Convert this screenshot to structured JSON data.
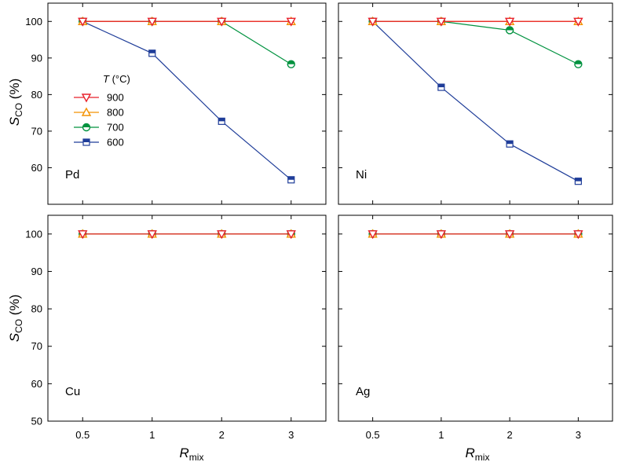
{
  "chart_data": {
    "type": "line",
    "x_categories": [
      "0.5",
      "1",
      "2",
      "3"
    ],
    "xlabel": {
      "main": "R",
      "sub": "mix"
    },
    "ylabel": {
      "main": "S",
      "sub": "CO",
      "unit": "(%)"
    },
    "ylim": [
      50,
      105
    ],
    "yticks": [
      50,
      60,
      70,
      80,
      90,
      100
    ],
    "legend": {
      "title_italic": "T",
      "title_unit": "(°C)",
      "entries": [
        {
          "label": "900",
          "color": "#e8212b",
          "marker": "triangle-down"
        },
        {
          "label": "800",
          "color": "#f39200",
          "marker": "triangle-up"
        },
        {
          "label": "700",
          "color": "#00923f",
          "marker": "circle"
        },
        {
          "label": "600",
          "color": "#1f3d99",
          "marker": "square"
        }
      ]
    },
    "panels": [
      {
        "label": "Pd",
        "series": [
          {
            "name": "900",
            "values": [
              100,
              100,
              100,
              100
            ]
          },
          {
            "name": "800",
            "values": [
              100,
              100,
              100,
              100
            ]
          },
          {
            "name": "700",
            "values": [
              100,
              100,
              100,
              88.3
            ]
          },
          {
            "name": "600",
            "values": [
              100,
              91.3,
              72.7,
              56.7
            ]
          }
        ]
      },
      {
        "label": "Ni",
        "series": [
          {
            "name": "900",
            "values": [
              100,
              100,
              100,
              100
            ]
          },
          {
            "name": "800",
            "values": [
              100,
              100,
              100,
              100
            ]
          },
          {
            "name": "700",
            "values": [
              100,
              100,
              97.6,
              88.3
            ]
          },
          {
            "name": "600",
            "values": [
              100,
              82,
              66.5,
              56.3
            ]
          }
        ]
      },
      {
        "label": "Cu",
        "series": [
          {
            "name": "900",
            "values": [
              100,
              100,
              100,
              100
            ]
          },
          {
            "name": "800",
            "values": [
              100,
              100,
              100,
              100
            ]
          },
          {
            "name": "700",
            "values": [
              100,
              100,
              100,
              100
            ]
          },
          {
            "name": "600",
            "values": [
              100,
              100,
              100,
              100
            ]
          }
        ]
      },
      {
        "label": "Ag",
        "series": [
          {
            "name": "900",
            "values": [
              100,
              100,
              100,
              100
            ]
          },
          {
            "name": "800",
            "values": [
              100,
              100,
              100,
              100
            ]
          },
          {
            "name": "700",
            "values": [
              100,
              100,
              100,
              100
            ]
          },
          {
            "name": "600",
            "values": [
              100,
              100,
              100,
              100
            ]
          }
        ]
      }
    ]
  }
}
